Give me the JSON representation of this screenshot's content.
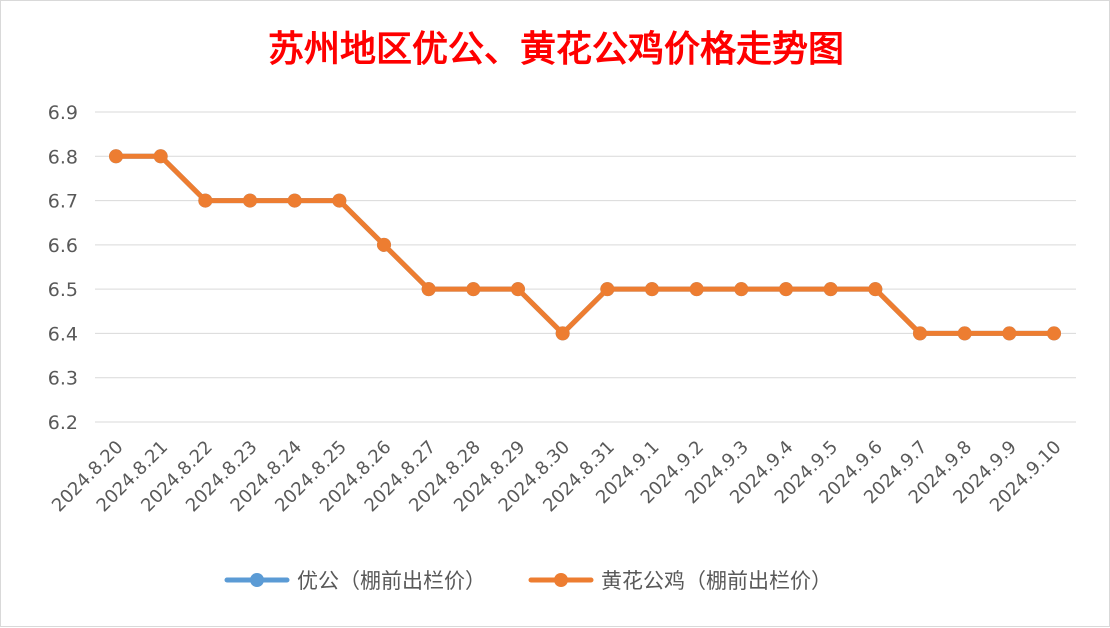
{
  "chart_data": {
    "type": "line",
    "title": "苏州地区优公、黄花公鸡价格走势图",
    "xlabel": "",
    "ylabel": "",
    "categories": [
      "2024.8.20",
      "2024.8.21",
      "2024.8.22",
      "2024.8.23",
      "2024.8.24",
      "2024.8.25",
      "2024.8.26",
      "2024.8.27",
      "2024.8.28",
      "2024.8.29",
      "2024.8.30",
      "2024.8.31",
      "2024.9.1",
      "2024.9.2",
      "2024.9.3",
      "2024.9.4",
      "2024.9.5",
      "2024.9.6",
      "2024.9.7",
      "2024.9.8",
      "2024.9.9",
      "2024.9.10"
    ],
    "ylim": [
      6.2,
      6.9
    ],
    "yticks": [
      "6.2",
      "6.3",
      "6.4",
      "6.5",
      "6.6",
      "6.7",
      "6.8",
      "6.9"
    ],
    "grid": true,
    "legend_position": "bottom",
    "series": [
      {
        "name": "优公（棚前出栏价）",
        "color": "#5b9bd5",
        "values": [
          6.8,
          6.8,
          6.7,
          6.7,
          6.7,
          6.7,
          6.6,
          6.5,
          6.5,
          6.5,
          6.4,
          6.5,
          6.5,
          6.5,
          6.5,
          6.5,
          6.5,
          6.5,
          6.4,
          6.4,
          6.4,
          6.4
        ]
      },
      {
        "name": "黄花公鸡（棚前出栏价）",
        "color": "#ed7d31",
        "values": [
          6.8,
          6.8,
          6.7,
          6.7,
          6.7,
          6.7,
          6.6,
          6.5,
          6.5,
          6.5,
          6.4,
          6.5,
          6.5,
          6.5,
          6.5,
          6.5,
          6.5,
          6.5,
          6.4,
          6.4,
          6.4,
          6.4
        ]
      }
    ]
  }
}
